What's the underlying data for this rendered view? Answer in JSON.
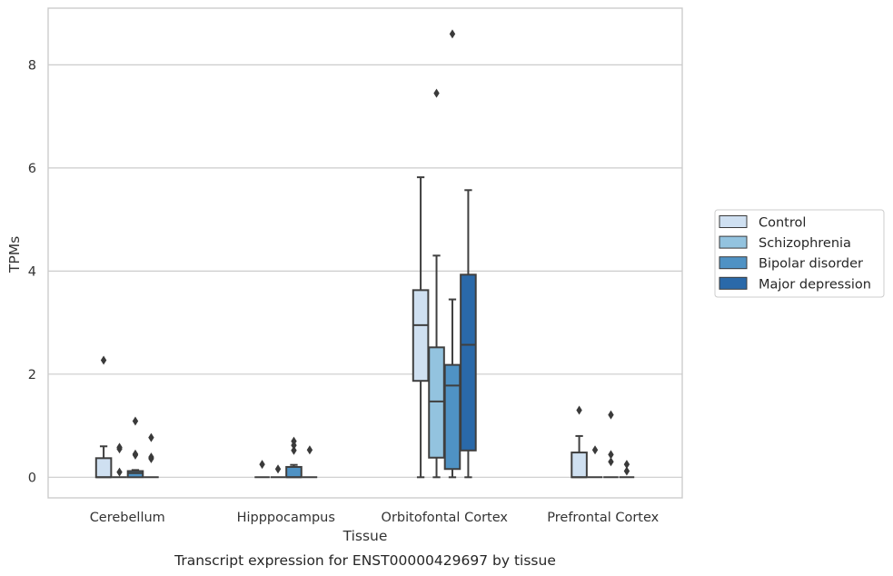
{
  "caption": "Transcript expression for ENST00000429697 by tissue",
  "chart_data": {
    "type": "box",
    "title": "",
    "xlabel": "Tissue",
    "ylabel": "TPMs",
    "categories": [
      "Cerebellum",
      "Hipppocampus",
      "Orbitofontal Cortex",
      "Prefrontal Cortex"
    ],
    "ylim": [
      -0.4,
      9.1
    ],
    "yticks": [
      0,
      2,
      4,
      6,
      8
    ],
    "grid": "horizontal",
    "legend_position": "right",
    "series": [
      {
        "name": "Control",
        "color": "#cfe0f1",
        "boxes": [
          {
            "q1": 0,
            "median": 0,
            "q3": 0.37,
            "whisker_low": 0,
            "whisker_high": 0.6,
            "outliers": [
              2.27
            ]
          },
          {
            "q1": 0,
            "median": 0,
            "q3": 0,
            "whisker_low": 0,
            "whisker_high": 0,
            "outliers": [
              0.25
            ]
          },
          {
            "q1": 1.87,
            "median": 2.95,
            "q3": 3.63,
            "whisker_low": 0,
            "whisker_high": 5.82,
            "outliers": []
          },
          {
            "q1": 0,
            "median": 0,
            "q3": 0.48,
            "whisker_low": 0,
            "whisker_high": 0.8,
            "outliers": [
              1.3
            ]
          }
        ]
      },
      {
        "name": "Schizophrenia",
        "color": "#93c3df",
        "boxes": [
          {
            "q1": 0,
            "median": 0,
            "q3": 0,
            "whisker_low": 0,
            "whisker_high": 0,
            "outliers": [
              0.1,
              0.55,
              0.58
            ]
          },
          {
            "q1": 0,
            "median": 0,
            "q3": 0,
            "whisker_low": 0,
            "whisker_high": 0,
            "outliers": [
              0.16
            ]
          },
          {
            "q1": 0.38,
            "median": 1.47,
            "q3": 2.52,
            "whisker_low": 0,
            "whisker_high": 4.3,
            "outliers": [
              7.45
            ]
          },
          {
            "q1": 0,
            "median": 0,
            "q3": 0,
            "whisker_low": 0,
            "whisker_high": 0,
            "outliers": [
              0.53
            ]
          }
        ]
      },
      {
        "name": "Bipolar disorder",
        "color": "#4f92c4",
        "boxes": [
          {
            "q1": 0,
            "median": 0.08,
            "q3": 0.12,
            "whisker_low": 0,
            "whisker_high": 0.14,
            "outliers": [
              0.43,
              0.45,
              1.09
            ]
          },
          {
            "q1": 0,
            "median": 0,
            "q3": 0.2,
            "whisker_low": 0,
            "whisker_high": 0.24,
            "outliers": [
              0.52,
              0.62,
              0.7
            ]
          },
          {
            "q1": 0.16,
            "median": 1.78,
            "q3": 2.18,
            "whisker_low": 0,
            "whisker_high": 3.45,
            "outliers": [
              8.6
            ]
          },
          {
            "q1": 0,
            "median": 0,
            "q3": 0,
            "whisker_low": 0,
            "whisker_high": 0,
            "outliers": [
              0.3,
              0.44,
              1.21
            ]
          }
        ]
      },
      {
        "name": "Major depression",
        "color": "#2a69a9",
        "boxes": [
          {
            "q1": 0,
            "median": 0,
            "q3": 0,
            "whisker_low": 0,
            "whisker_high": 0,
            "outliers": [
              0.36,
              0.39,
              0.77
            ]
          },
          {
            "q1": 0,
            "median": 0,
            "q3": 0,
            "whisker_low": 0,
            "whisker_high": 0,
            "outliers": [
              0.53
            ]
          },
          {
            "q1": 0.52,
            "median": 2.57,
            "q3": 3.93,
            "whisker_low": 0,
            "whisker_high": 5.57,
            "outliers": []
          },
          {
            "q1": 0,
            "median": 0,
            "q3": 0,
            "whisker_low": 0,
            "whisker_high": 0,
            "outliers": [
              0.12,
              0.25
            ]
          }
        ]
      }
    ]
  }
}
